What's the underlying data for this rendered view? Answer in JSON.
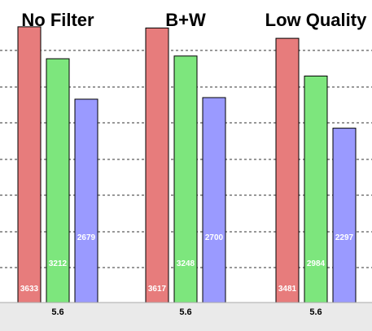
{
  "chart_data": {
    "type": "bar",
    "categories": [
      "No Filter",
      "B+W",
      "Low Quality"
    ],
    "x_tick_labels": [
      "5.6",
      "5.6",
      "5.6"
    ],
    "series": [
      {
        "color": "#e77c7c",
        "values": [
          3633,
          3617,
          3481
        ]
      },
      {
        "color": "#7de67d",
        "values": [
          3212,
          3248,
          2984
        ]
      },
      {
        "color": "#9a9aff",
        "values": [
          2679,
          2700,
          2297
        ]
      }
    ],
    "ylim": [
      0,
      3750
    ],
    "grid": "horizontal dashed",
    "legend": "none"
  },
  "colors": {
    "axis_band": "#eaeaea",
    "label_bg_opacity": 0.5
  }
}
